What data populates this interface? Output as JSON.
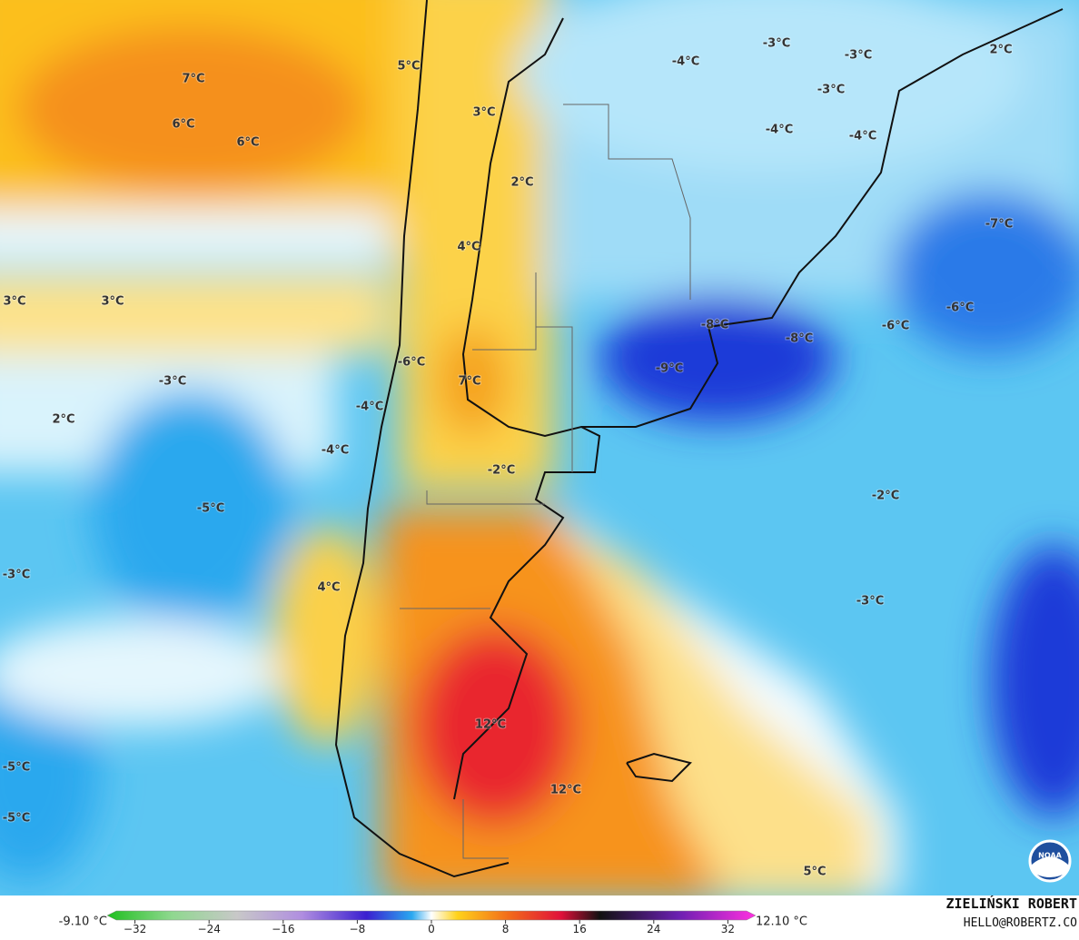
{
  "map_labels": [
    "5°C",
    "7°C",
    "6°C",
    "6°C",
    "3°C",
    "-4°C",
    "-3°C",
    "-3°C",
    "2°C",
    "-3°C",
    "-4°C",
    "-4°C",
    "2°C",
    "4°C",
    "-7°C",
    "3°C",
    "3°C",
    "-6°C",
    "-8°C",
    "-6°C",
    "-8°C",
    "-6°C",
    "-9°C",
    "-3°C",
    "7°C",
    "-4°C",
    "2°C",
    "-4°C",
    "-2°C",
    "-2°C",
    "-5°C",
    "-3°C",
    "4°C",
    "-3°C",
    "12°C",
    "-5°C",
    "12°C",
    "-5°C",
    "5°C"
  ],
  "colorbar": {
    "min_label": "-9.10 °C",
    "max_label": "12.10 °C",
    "lim": [
      -35,
      35
    ],
    "ticks": [
      {
        "value": -32,
        "label": "−32"
      },
      {
        "value": -24,
        "label": "−24"
      },
      {
        "value": -16,
        "label": "−16"
      },
      {
        "value": -8,
        "label": "−8"
      },
      0,
      8,
      16,
      24,
      32
    ]
  },
  "credit": {
    "name": "ZIELIŃSKI ROBERT",
    "email": "HELLO@ROBERTZ.CO"
  },
  "logo": "NOAA"
}
